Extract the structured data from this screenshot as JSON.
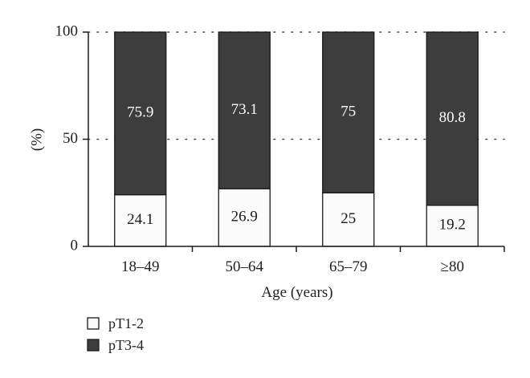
{
  "chart_data": {
    "type": "bar",
    "stacked": true,
    "categories": [
      "18–49",
      "50–64",
      "65–79",
      "≥80"
    ],
    "series": [
      {
        "name": "pT1-2",
        "values": [
          24.1,
          26.9,
          25,
          19.2
        ],
        "color": "#fbfbfb",
        "label_color": "#1a1a1a"
      },
      {
        "name": "pT3-4",
        "values": [
          75.9,
          73.1,
          75,
          80.8
        ],
        "color": "#3d3d3d",
        "label_color": "#ffffff"
      }
    ],
    "data_labels": [
      [
        "24.1",
        "26.9",
        "25",
        "19.2"
      ],
      [
        "75.9",
        "73.1",
        "75",
        "80.8"
      ]
    ],
    "xlabel": "Age (years)",
    "ylabel": "(%)",
    "ylim": [
      0,
      100
    ],
    "yticks": [
      0,
      50,
      100
    ],
    "grid": "dotted horizontal at 50 and 100",
    "legend": "bottom-left"
  }
}
